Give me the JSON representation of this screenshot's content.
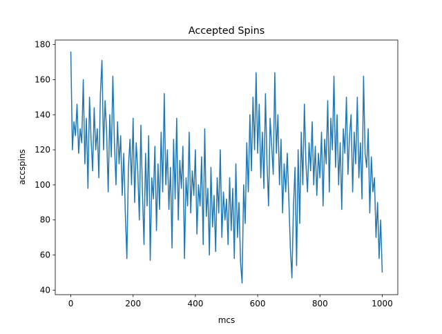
{
  "chart_data": {
    "type": "line",
    "title": "Accepted Spins",
    "xlabel": "mcs",
    "ylabel": "accspins",
    "x": [
      0,
      5,
      10,
      15,
      20,
      25,
      30,
      35,
      40,
      45,
      50,
      55,
      60,
      65,
      70,
      75,
      80,
      85,
      90,
      95,
      100,
      105,
      110,
      115,
      120,
      125,
      130,
      135,
      140,
      145,
      150,
      155,
      160,
      165,
      170,
      175,
      180,
      185,
      190,
      195,
      200,
      205,
      210,
      215,
      220,
      225,
      230,
      235,
      240,
      245,
      250,
      255,
      260,
      265,
      270,
      275,
      280,
      285,
      290,
      295,
      300,
      305,
      310,
      315,
      320,
      325,
      330,
      335,
      340,
      345,
      350,
      355,
      360,
      365,
      370,
      375,
      380,
      385,
      390,
      395,
      400,
      405,
      410,
      415,
      420,
      425,
      430,
      435,
      440,
      445,
      450,
      455,
      460,
      465,
      470,
      475,
      480,
      485,
      490,
      495,
      500,
      505,
      510,
      515,
      520,
      525,
      530,
      535,
      540,
      545,
      550,
      555,
      560,
      565,
      570,
      575,
      580,
      585,
      590,
      595,
      600,
      605,
      610,
      615,
      620,
      625,
      630,
      635,
      640,
      645,
      650,
      655,
      660,
      665,
      670,
      675,
      680,
      685,
      690,
      695,
      700,
      705,
      710,
      715,
      720,
      725,
      730,
      735,
      740,
      745,
      750,
      755,
      760,
      765,
      770,
      775,
      780,
      785,
      790,
      795,
      800,
      805,
      810,
      815,
      820,
      825,
      830,
      835,
      840,
      845,
      850,
      855,
      860,
      865,
      870,
      875,
      880,
      885,
      890,
      895,
      900,
      905,
      910,
      915,
      920,
      925,
      930,
      935,
      940,
      945,
      950,
      955,
      960,
      965,
      970,
      975,
      980,
      985,
      990,
      995,
      1000
    ],
    "series": [
      {
        "name": "accspins",
        "color": "#1f77b4",
        "values": [
          176,
          120,
          136,
          128,
          146,
          118,
          132,
          124,
          160,
          112,
          138,
          98,
          150,
          126,
          108,
          144,
          120,
          132,
          104,
          152,
          171,
          120,
          148,
          130,
          96,
          140,
          116,
          162,
          124,
          100,
          136,
          112,
          128,
          94,
          118,
          84,
          58,
          110,
          126,
          100,
          138,
          90,
          124,
          108,
          80,
          134,
          96,
          66,
          118,
          88,
          128,
          57,
          104,
          92,
          122,
          74,
          112,
          86,
          130,
          96,
          152,
          100,
          120,
          86,
          110,
          64,
          126,
          92,
          138,
          80,
          114,
          98,
          122,
          58,
          104,
          88,
          130,
          84,
          108,
          94,
          120,
          72,
          100,
          88,
          116,
          66,
          132,
          82,
          98,
          60,
          110,
          76,
          94,
          62,
          104,
          84,
          120,
          70,
          96,
          80,
          92,
          66,
          104,
          74,
          98,
          58,
          112,
          70,
          90,
          56,
          44,
          100,
          78,
          124,
          96,
          140,
          108,
          150,
          120,
          164,
          118,
          146,
          104,
          130,
          98,
          152,
          112,
          88,
          138,
          122,
          106,
          164,
          118,
          140,
          100,
          126,
          84,
          112,
          96,
          118,
          92,
          64,
          47,
          88,
          110,
          54,
          120,
          78,
          130,
          100,
          146,
          112,
          96,
          124,
          108,
          136,
          100,
          122,
          94,
          118,
          104,
          130,
          88,
          126,
          112,
          148,
          96,
          138,
          120,
          162,
          110,
          140,
          100,
          124,
          86,
          132,
          118,
          150,
          106,
          128,
          140,
          96,
          130,
          112,
          150,
          104,
          124,
          92,
          162,
          118,
          110,
          132,
          84,
          116,
          96,
          104,
          70,
          90,
          58,
          80,
          50
        ]
      }
    ],
    "xlim": [
      -50,
      1050
    ],
    "ylim": [
      37.4,
      182.6
    ],
    "xticks": [
      0,
      200,
      400,
      600,
      800,
      1000
    ],
    "yticks": [
      40,
      60,
      80,
      100,
      120,
      140,
      160,
      180
    ]
  }
}
